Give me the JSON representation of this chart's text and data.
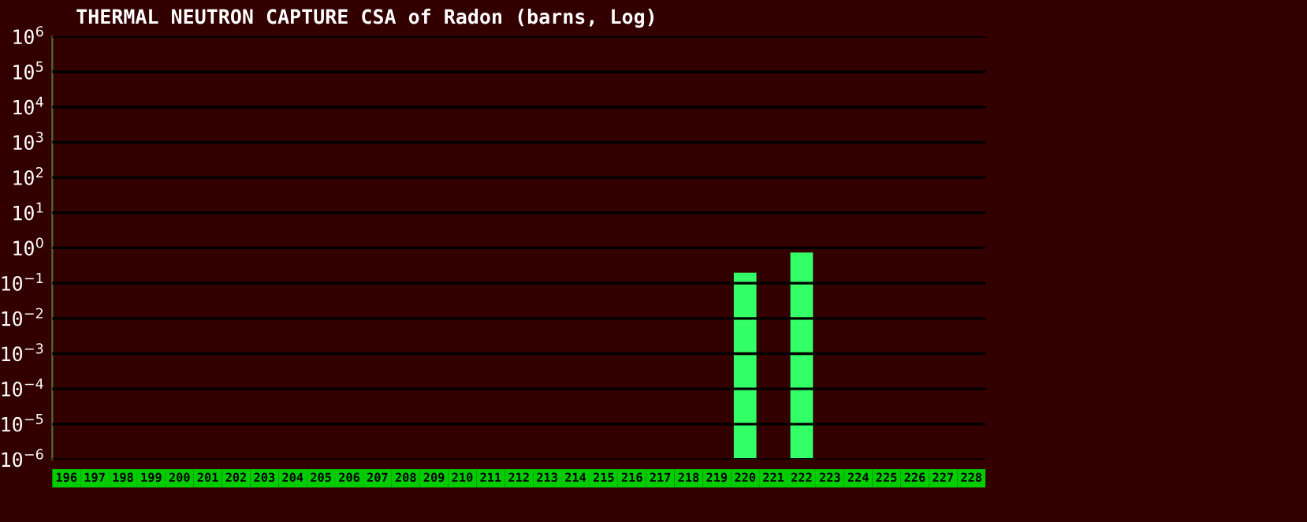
{
  "chart_data": {
    "type": "bar",
    "title": "THERMAL NEUTRON CAPTURE CSA of Radon (barns, Log)",
    "categories": [
      "196",
      "197",
      "198",
      "199",
      "200",
      "201",
      "202",
      "203",
      "204",
      "205",
      "206",
      "207",
      "208",
      "209",
      "210",
      "211",
      "212",
      "213",
      "214",
      "215",
      "216",
      "217",
      "218",
      "219",
      "220",
      "221",
      "222",
      "223",
      "224",
      "225",
      "226",
      "227",
      "228"
    ],
    "values": [
      null,
      null,
      null,
      null,
      null,
      null,
      null,
      null,
      null,
      null,
      null,
      null,
      null,
      null,
      null,
      null,
      null,
      null,
      null,
      null,
      null,
      null,
      null,
      null,
      0.2,
      null,
      0.74,
      null,
      null,
      null,
      null,
      null,
      null
    ],
    "color": "#33ff66",
    "log": "y",
    "grid": "y",
    "ylim": [
      1e-06,
      1000000.0
    ],
    "yticks": [
      {
        "value": 1e-06,
        "label": "10$^{−6}$"
      },
      {
        "value": 1e-05,
        "label": "10$^{−5}$"
      },
      {
        "value": 0.0001,
        "label": "10$^{−4}$"
      },
      {
        "value": 0.001,
        "label": "10$^{−3}$"
      },
      {
        "value": 0.01,
        "label": "10$^{−2}$"
      },
      {
        "value": 0.1,
        "label": "10$^{−1}$"
      },
      {
        "value": 1,
        "label": "10$^{0}$"
      },
      {
        "value": 10,
        "label": "10$^{1}$"
      },
      {
        "value": 100,
        "label": "10$^{2}$"
      },
      {
        "value": 1000,
        "label": "10$^{3}$"
      },
      {
        "value": 10000,
        "label": "10$^{4}$"
      },
      {
        "value": 100000,
        "label": "10$^{5}$"
      },
      {
        "value": 1000000,
        "label": "10$^{6}$"
      }
    ]
  }
}
